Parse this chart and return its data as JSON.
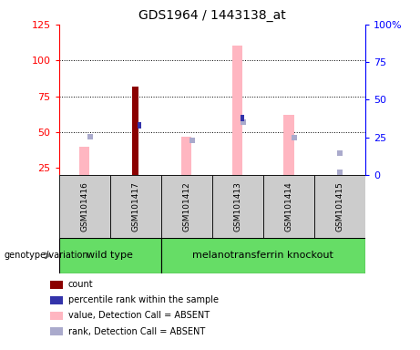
{
  "title": "GDS1964 / 1443138_at",
  "samples": [
    "GSM101416",
    "GSM101417",
    "GSM101412",
    "GSM101413",
    "GSM101414",
    "GSM101415"
  ],
  "count_bars": {
    "GSM101416": null,
    "GSM101417": 82,
    "GSM101412": null,
    "GSM101413": null,
    "GSM101414": null,
    "GSM101415": null
  },
  "percentile_rank_bars": {
    "GSM101416": null,
    "GSM101417": 33,
    "GSM101412": null,
    "GSM101413": 38,
    "GSM101414": null,
    "GSM101415": null
  },
  "value_absent_bars": {
    "GSM101416": 40,
    "GSM101417": null,
    "GSM101412": 47,
    "GSM101413": 110,
    "GSM101414": 62,
    "GSM101415": null
  },
  "rank_absent_dots": {
    "GSM101416": 47,
    "GSM101417": null,
    "GSM101412": 44,
    "GSM101413": 57,
    "GSM101414": 46,
    "GSM101415": 35
  },
  "rank_absent_low": {
    "GSM101415": 22
  },
  "ylim_left": [
    20,
    125
  ],
  "yticks_left": [
    25,
    50,
    75,
    100,
    125
  ],
  "ylim_right": [
    0,
    100
  ],
  "yticks_right": [
    0,
    25,
    50,
    75,
    100
  ],
  "count_color": "#8B0000",
  "percentile_color": "#3333AA",
  "value_absent_color": "#FFB6C1",
  "rank_absent_color": "#AAAACC",
  "wt_group": [
    0,
    1
  ],
  "mt_group": [
    2,
    3,
    4,
    5
  ],
  "wt_label": "wild type",
  "mt_label": "melanotransferrin knockout",
  "group_color": "#66DD66",
  "sample_box_color": "#CCCCCC",
  "legend_items": [
    [
      "#8B0000",
      "count"
    ],
    [
      "#3333AA",
      "percentile rank within the sample"
    ],
    [
      "#FFB6C1",
      "value, Detection Call = ABSENT"
    ],
    [
      "#AAAACC",
      "rank, Detection Call = ABSENT"
    ]
  ]
}
